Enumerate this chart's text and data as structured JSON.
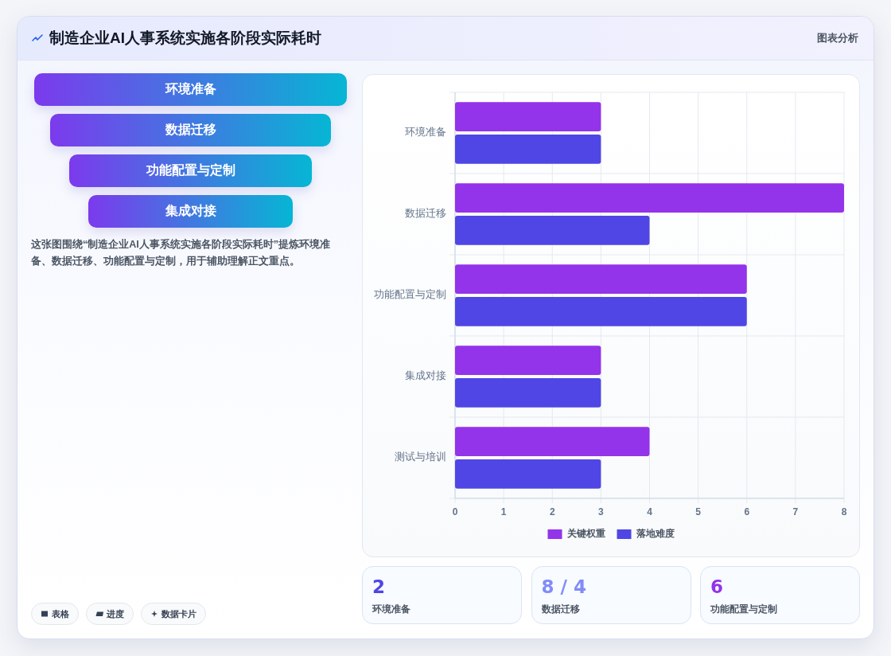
{
  "chart_data": [
    {
      "type": "other",
      "title": "制造企业AI人事系统实施各阶段实际耗时",
      "annotations": [
        "图表分析"
      ]
    },
    {
      "type": "bar",
      "orientation": "horizontal",
      "categories": [
        "环境准备",
        "数据迁移",
        "功能配置与定制",
        "集成对接",
        "测试与培训"
      ],
      "series": [
        {
          "name": "关键权重",
          "color": "#9333ea",
          "values": [
            3,
            8,
            6,
            3,
            4
          ]
        },
        {
          "name": "落地难度",
          "color": "#4f46e5",
          "values": [
            3,
            4,
            6,
            3,
            3
          ]
        }
      ],
      "xlim": [
        0,
        8
      ],
      "xticks": [
        0,
        1,
        2,
        3,
        4,
        5,
        6,
        7,
        8
      ],
      "grid": true,
      "legend": "bottom"
    },
    {
      "type": "other",
      "categories": [
        "环境准备",
        "数据迁移",
        "功能配置与定制",
        "集成对接"
      ],
      "annotations": [
        "这张图围绕“制造企业AI人事系统实施各阶段实际耗时”提炼环境准备、数据迁移、功能配置与定制，用于辅助理解正文重点。",
        "表格",
        "进度",
        "数据卡片"
      ]
    },
    {
      "type": "other",
      "categories": [
        "环境准备",
        "数据迁移",
        "功能配置与定制"
      ],
      "value_labels": [
        "2",
        "8 / 4",
        "6"
      ]
    }
  ]
}
